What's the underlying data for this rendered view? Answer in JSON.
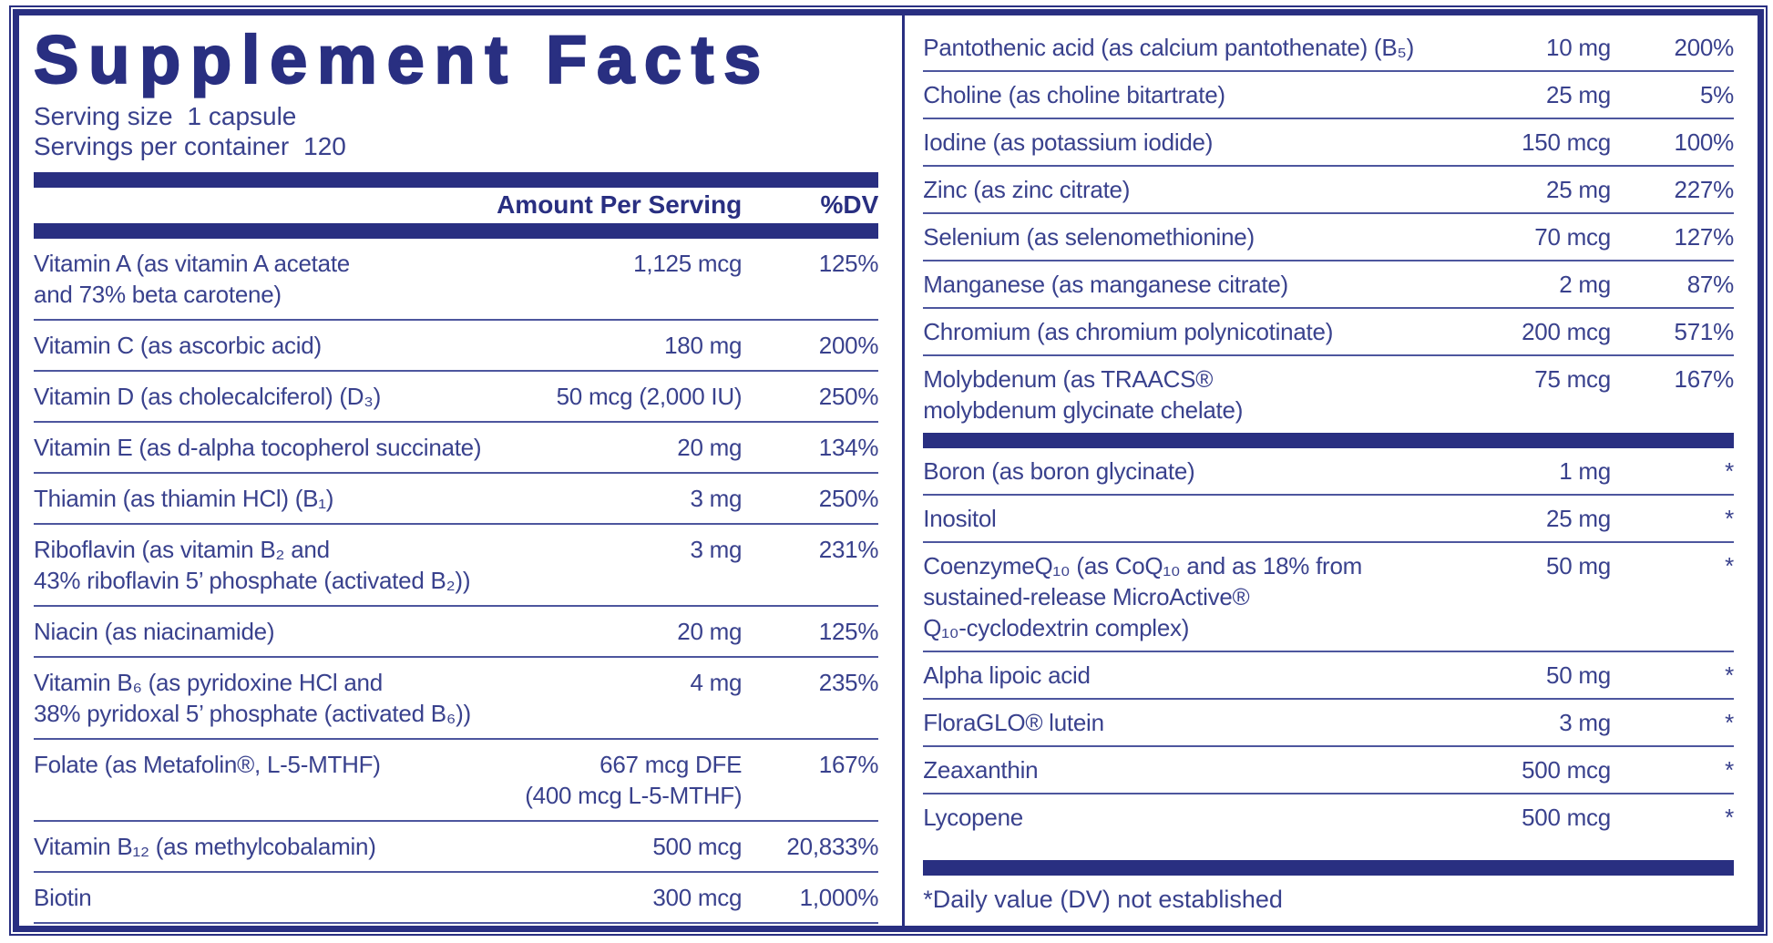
{
  "colors": {
    "navy": "#292f81",
    "text": "#39418d",
    "hairline": "#4d569e"
  },
  "title": "Supplement Facts",
  "serving": {
    "size_label": "Serving size",
    "size_value": "1 capsule",
    "per_container_label": "Servings per container",
    "per_container_value": "120"
  },
  "table_header": {
    "amount": "Amount Per Serving",
    "dv": "%DV"
  },
  "left_rows": [
    {
      "name": "Vitamin A (as vitamin A acetate\nand 73% beta carotene)",
      "amount": "1,125 mcg",
      "dv": "125%"
    },
    {
      "name": "Vitamin C (as ascorbic acid)",
      "amount": "180 mg",
      "dv": "200%"
    },
    {
      "name": "Vitamin D (as cholecalciferol) (D₃)",
      "amount": "50 mcg (2,000 IU)",
      "dv": "250%"
    },
    {
      "name": "Vitamin E (as d-alpha tocopherol succinate)",
      "amount": "20 mg",
      "dv": "134%"
    },
    {
      "name": "Thiamin (as thiamin HCl) (B₁)",
      "amount": "3 mg",
      "dv": "250%"
    },
    {
      "name": "Riboflavin (as vitamin B₂ and\n43% riboflavin 5’ phosphate (activated B₂))",
      "amount": "3 mg",
      "dv": "231%"
    },
    {
      "name": "Niacin (as niacinamide)",
      "amount": "20 mg",
      "dv": "125%"
    },
    {
      "name": "Vitamin B₆ (as pyridoxine HCl and\n38% pyridoxal 5’ phosphate (activated B₆))",
      "amount": "4 mg",
      "dv": "235%"
    },
    {
      "name": "Folate (as Metafolin®, L-5-MTHF)",
      "amount": "667 mcg DFE\n(400 mcg L-5-MTHF)",
      "dv": "167%"
    },
    {
      "name": "Vitamin B₁₂ (as methylcobalamin)",
      "amount": "500 mcg",
      "dv": "20,833%"
    },
    {
      "name": "Biotin",
      "amount": "300 mcg",
      "dv": "1,000%"
    }
  ],
  "right_rows_minerals": [
    {
      "name": "Pantothenic acid (as calcium pantothenate) (B₅)",
      "amount": "10 mg",
      "dv": "200%"
    },
    {
      "name": "Choline (as choline bitartrate)",
      "amount": "25 mg",
      "dv": "5%"
    },
    {
      "name": "Iodine (as potassium iodide)",
      "amount": "150 mcg",
      "dv": "100%"
    },
    {
      "name": "Zinc (as zinc citrate)",
      "amount": "25 mg",
      "dv": "227%"
    },
    {
      "name": "Selenium (as selenomethionine)",
      "amount": "70 mcg",
      "dv": "127%"
    },
    {
      "name": "Manganese (as manganese citrate)",
      "amount": "2 mg",
      "dv": "87%"
    },
    {
      "name": "Chromium (as chromium polynicotinate)",
      "amount": "200 mcg",
      "dv": "571%"
    },
    {
      "name": "Molybdenum (as TRAACS®\nmolybdenum glycinate chelate)",
      "amount": "75 mcg",
      "dv": "167%"
    }
  ],
  "right_rows_other": [
    {
      "name": "Boron (as boron glycinate)",
      "amount": "1 mg",
      "dv": "*"
    },
    {
      "name": "Inositol",
      "amount": "25 mg",
      "dv": "*"
    },
    {
      "name": "CoenzymeQ₁₀ (as CoQ₁₀ and as 18% from\nsustained-release MicroActive®\nQ₁₀-cyclodextrin complex)",
      "amount": "50 mg",
      "dv": "*"
    },
    {
      "name": "Alpha lipoic acid",
      "amount": "50 mg",
      "dv": "*"
    },
    {
      "name": "FloraGLO® lutein",
      "amount": "3 mg",
      "dv": "*"
    },
    {
      "name": "Zeaxanthin",
      "amount": "500 mcg",
      "dv": "*"
    },
    {
      "name": "Lycopene",
      "amount": "500 mcg",
      "dv": "*"
    }
  ],
  "footnote": "*Daily value (DV) not established"
}
